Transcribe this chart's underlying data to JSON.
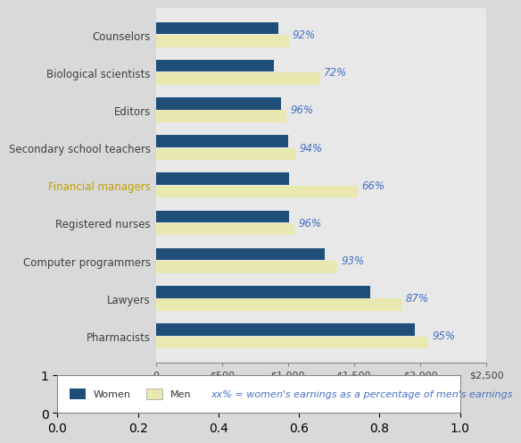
{
  "categories": [
    "Counselors",
    "Biological scientists",
    "Editors",
    "Secondary school teachers",
    "Financial managers",
    "Registered nurses",
    "Computer programmers",
    "Lawyers",
    "Pharmacists"
  ],
  "women_values": [
    930,
    895,
    950,
    1000,
    1010,
    1010,
    1280,
    1620,
    1960
  ],
  "men_values": [
    1010,
    1243,
    990,
    1064,
    1530,
    1052,
    1376,
    1862,
    2063
  ],
  "percentages": [
    "92%",
    "72%",
    "96%",
    "94%",
    "66%",
    "96%",
    "93%",
    "87%",
    "95%"
  ],
  "women_color": "#1F4E79",
  "men_color": "#E8E8B0",
  "figure_background": "#D9D9D9",
  "plot_background": "#E8E8E8",
  "pct_color": "#4472C4",
  "financial_managers_color": "#C0A000",
  "xlim": [
    0,
    2500
  ],
  "xticks": [
    0,
    500,
    1000,
    1500,
    2000,
    2500
  ],
  "xtick_labels": [
    "0",
    "$500",
    "$1,000",
    "$1,500",
    "$2,000",
    "$2,500"
  ],
  "legend_women_label": "Women",
  "legend_men_label": "Men",
  "legend_note": "xx% = women's earnings as a percentage of men's earnings",
  "bar_height": 0.32,
  "fontsize_categories": 8.5,
  "fontsize_pct": 8.5,
  "fontsize_ticks": 8,
  "fontsize_legend": 8
}
